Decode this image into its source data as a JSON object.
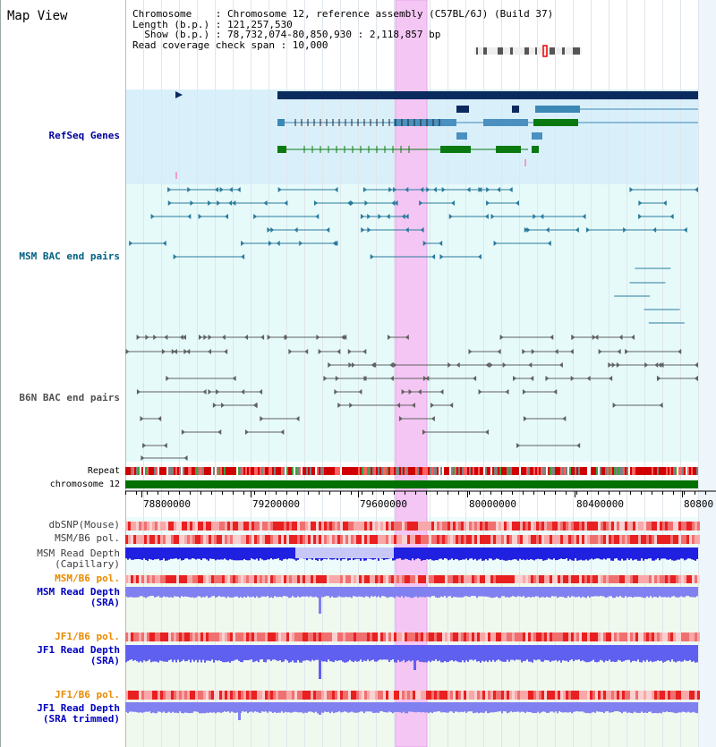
{
  "title": "Map View",
  "header": {
    "chromosome": "Chromosome    : Chromosome 12, reference assembly (C57BL/6J) (Build 37)",
    "length": "Length (b.p.) : 121,257,530",
    "show": "  Show (b.p.) : 78,732,074-80,850,930 : 2,118,857 bp",
    "read_span": "Read coverage check span : 10,000"
  },
  "tracks": {
    "refseq": "RefSeq Genes",
    "msm_bac": "MSM BAC end pairs",
    "b6n_bac": "B6N BAC end pairs",
    "repeat": "Repeat",
    "chromosome": "chromosome 12",
    "dbsnp": "dbSNP(Mouse)",
    "msm_b6_pol_1": "MSM/B6 pol.",
    "msm_depth_cap_1": "MSM Read Depth",
    "msm_depth_cap_2": "(Capillary)",
    "msm_b6_pol_2": "MSM/B6 pol.",
    "msm_depth_sra_1": "MSM Read Depth",
    "msm_depth_sra_2": "(SRA)",
    "jf1_b6_pol_1": "JF1/B6 pol.",
    "jf1_depth_sra_1": "JF1 Read Depth",
    "jf1_depth_sra_2": "(SRA)",
    "jf1_b6_pol_2": "JF1/B6 pol.",
    "jf1_depth_trim_1": "JF1 Read Depth",
    "jf1_depth_trim_2": "(SRA trimmed)"
  },
  "axis": {
    "ticks": [
      "78800000",
      "79200000",
      "79600000",
      "80000000",
      "80400000",
      "80800"
    ]
  },
  "colors": {
    "refseq_label": "#00009c",
    "msm_label": "#006080",
    "b6n_label": "#505050",
    "orange_label": "#e88a00",
    "blue_label": "#0000c0",
    "highlight": "#f4c6f4"
  }
}
